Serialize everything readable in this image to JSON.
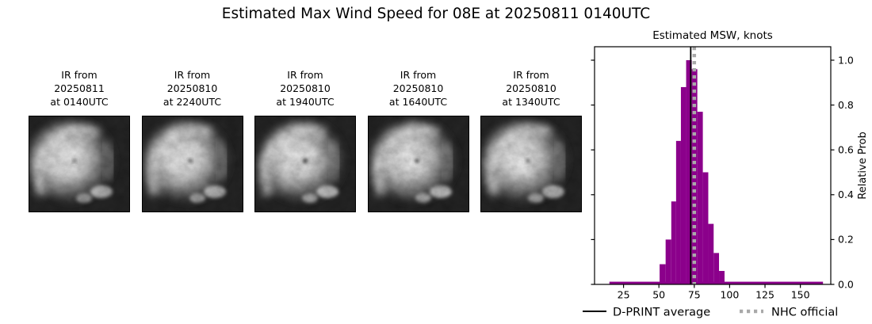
{
  "title": "Estimated Max Wind Speed for 08E at 20250811 0140UTC",
  "satellite_images": [
    {
      "label_lines": [
        "IR from",
        "20250811",
        "at 0140UTC"
      ]
    },
    {
      "label_lines": [
        "IR from",
        "20250810",
        "at 2240UTC"
      ]
    },
    {
      "label_lines": [
        "IR from",
        "20250810",
        "at 1940UTC"
      ]
    },
    {
      "label_lines": [
        "IR from",
        "20250810",
        "at 1640UTC"
      ]
    },
    {
      "label_lines": [
        "IR from",
        "20250810",
        "at 1340UTC"
      ]
    }
  ],
  "chart_data": {
    "type": "bar",
    "title": "Estimated MSW, knots",
    "xlabel": "",
    "ylabel": "Relative Prob",
    "x_ticks": [
      25,
      50,
      75,
      100,
      125,
      150
    ],
    "y_ticks": [
      "0.0",
      "0.2",
      "0.4",
      "0.6",
      "0.8",
      "1.0"
    ],
    "xlim": [
      4.5,
      171.5
    ],
    "ylim": [
      0,
      1.06
    ],
    "grid": false,
    "bar_color": "#8B008B",
    "bins": [
      {
        "knots": 52.5,
        "prob": 0.09
      },
      {
        "knots": 57.0,
        "prob": 0.2
      },
      {
        "knots": 60.5,
        "prob": 0.37
      },
      {
        "knots": 63.8,
        "prob": 0.64
      },
      {
        "knots": 67.3,
        "prob": 0.88
      },
      {
        "knots": 71.2,
        "prob": 1.0
      },
      {
        "knots": 75.2,
        "prob": 0.96
      },
      {
        "knots": 79.1,
        "prob": 0.77
      },
      {
        "knots": 83.0,
        "prob": 0.5
      },
      {
        "knots": 86.8,
        "prob": 0.27
      },
      {
        "knots": 90.6,
        "prob": 0.14
      },
      {
        "knots": 94.4,
        "prob": 0.06
      }
    ],
    "baseline_strip": {
      "from_knots": 15,
      "to_knots": 166,
      "prob": 0.012
    },
    "dprint_average_knots": 72.5,
    "nhc_official_knots": 75,
    "dprint_line_color": "#000000",
    "nhc_line_color": "#A9A9A9",
    "legend": [
      {
        "label": "D-PRINT average",
        "style": "solid",
        "color": "#000000"
      },
      {
        "label": "NHC official",
        "style": "dotted",
        "color": "#A9A9A9"
      }
    ],
    "legend_position": "below"
  }
}
